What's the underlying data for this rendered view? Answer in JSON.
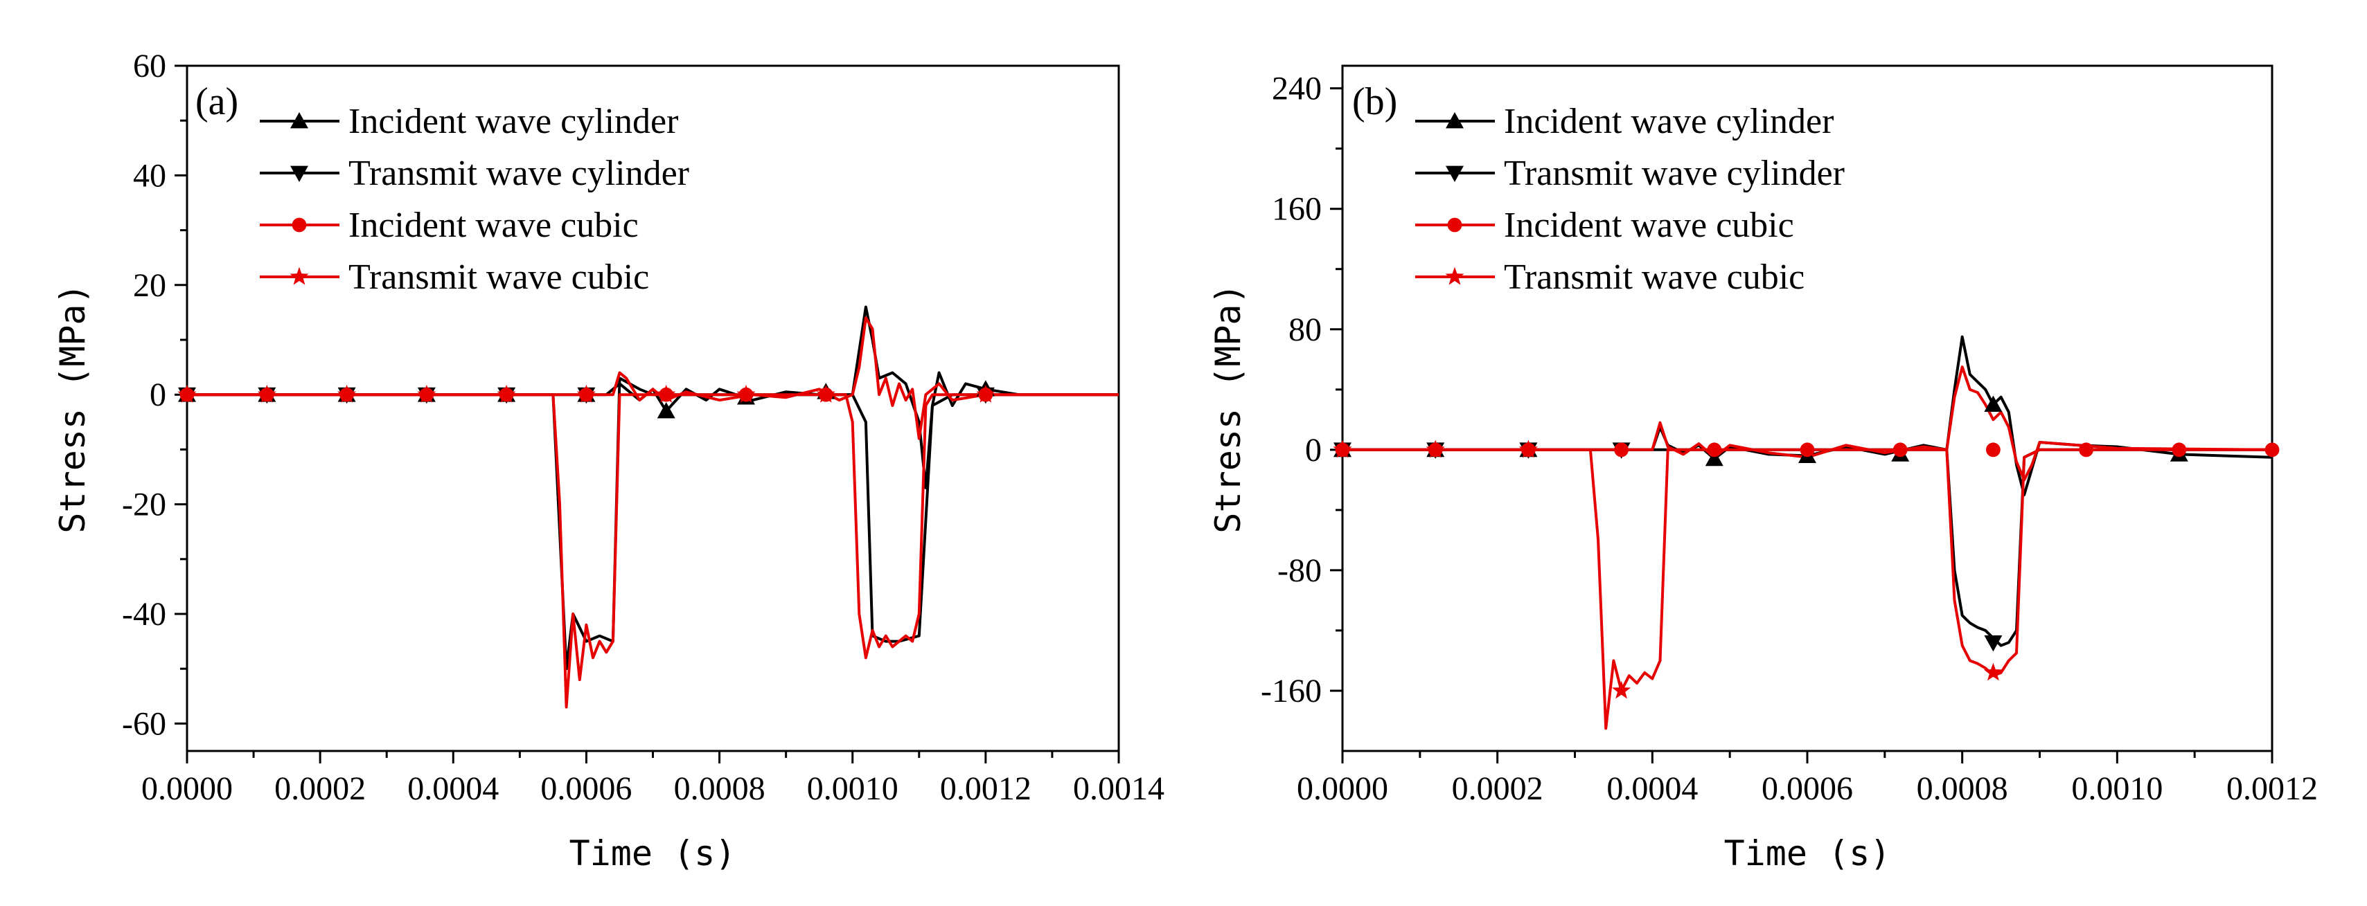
{
  "chart_data": [
    {
      "panel": "(a)",
      "type": "line",
      "xlabel": "Time (s)",
      "ylabel": "Stress (MPa)",
      "xlim": [
        0,
        0.0014
      ],
      "ylim": [
        -65,
        60
      ],
      "xticks": [
        0,
        0.0002,
        0.0004,
        0.0006,
        0.0008,
        0.001,
        0.0012,
        0.0014
      ],
      "xtick_labels": [
        "0.0000",
        "0.0002",
        "0.0004",
        "0.0006",
        "0.0008",
        "0.0010",
        "0.0012",
        "0.0014"
      ],
      "yticks": [
        -60,
        -40,
        -20,
        0,
        20,
        40,
        60
      ],
      "ytick_labels": [
        "-60",
        "-40",
        "-20",
        "0",
        "20",
        "40",
        "60"
      ],
      "legend_position": "top-left",
      "series": [
        {
          "name": "Incident wave cylinder",
          "color": "#000000",
          "marker": "triangle-up",
          "x": [
            0,
            0.0005,
            0.00063,
            0.00065,
            0.00068,
            0.0007,
            0.00072,
            0.00075,
            0.00078,
            0.0008,
            0.00085,
            0.0009,
            0.00095,
            0.001,
            0.00101,
            0.00102,
            0.00103,
            0.00104,
            0.00106,
            0.00108,
            0.0011,
            0.00111,
            0.00112,
            0.00113,
            0.00115,
            0.00117,
            0.0012,
            0.00125,
            0.0014
          ],
          "y": [
            0,
            0,
            0,
            2,
            -1,
            1,
            -3,
            1,
            -1,
            1,
            -1,
            0.5,
            0,
            0,
            8,
            16,
            10,
            3,
            4,
            2,
            -5,
            -17,
            -2,
            4,
            -2,
            2,
            1,
            0,
            0
          ],
          "marker_x": [
            0,
            0.00012,
            0.00024,
            0.00036,
            0.00048,
            0.0006,
            0.00072,
            0.00084,
            0.00096,
            0.0012
          ],
          "marker_y": [
            0,
            0,
            0,
            0,
            0,
            0,
            -3,
            -0.5,
            0.5,
            1
          ]
        },
        {
          "name": "Transmit wave cylinder",
          "color": "#000000",
          "marker": "triangle-down",
          "x": [
            0,
            0.00055,
            0.00057,
            0.00058,
            0.0006,
            0.00062,
            0.00064,
            0.00065,
            0.00068,
            0.0007,
            0.0009,
            0.001,
            0.00102,
            0.00103,
            0.00105,
            0.00107,
            0.0011,
            0.00112,
            0.00115,
            0.0014
          ],
          "y": [
            0,
            0,
            -50,
            -40,
            -45,
            -44,
            -45,
            3,
            1,
            0,
            0,
            0,
            -5,
            -44,
            -45,
            -45,
            -44,
            -2,
            0,
            0
          ],
          "marker_x": [
            0,
            0.00012,
            0.00024,
            0.00036,
            0.00048,
            0.0006,
            0.0012
          ],
          "marker_y": [
            0,
            0,
            0,
            0,
            0,
            0,
            0
          ]
        },
        {
          "name": "Incident wave cubic",
          "color": "#e60000",
          "marker": "circle",
          "x": [
            0,
            0.0006,
            0.00064,
            0.00065,
            0.00066,
            0.00068,
            0.0007,
            0.00072,
            0.00075,
            0.0008,
            0.00085,
            0.0009,
            0.00095,
            0.00098,
            0.001,
            0.00101,
            0.00102,
            0.00103,
            0.00104,
            0.00105,
            0.00106,
            0.00107,
            0.00108,
            0.00109,
            0.0011,
            0.00111,
            0.00113,
            0.00115,
            0.0012,
            0.0014
          ],
          "y": [
            0,
            0,
            0,
            4,
            3,
            -1,
            1,
            -1,
            0.5,
            -1,
            0,
            -0.5,
            1,
            -1,
            0,
            5,
            14,
            12,
            0,
            3,
            -2,
            2,
            -1,
            1,
            -8,
            0,
            2,
            -1,
            0,
            0
          ],
          "marker_x": [
            0,
            0.00012,
            0.00024,
            0.00036,
            0.00048,
            0.0006,
            0.00072,
            0.00084,
            0.00096,
            0.0012
          ],
          "marker_y": [
            0,
            0,
            0,
            0,
            0,
            0,
            0,
            0,
            0,
            0
          ]
        },
        {
          "name": "Transmit wave cubic",
          "color": "#e60000",
          "marker": "star",
          "x": [
            0,
            0.00055,
            0.00056,
            0.00057,
            0.00058,
            0.00059,
            0.0006,
            0.00061,
            0.00062,
            0.00063,
            0.00064,
            0.00065,
            0.0007,
            0.00099,
            0.001,
            0.00101,
            0.00102,
            0.00103,
            0.00104,
            0.00105,
            0.00106,
            0.00107,
            0.00108,
            0.00109,
            0.0011,
            0.00111,
            0.00112,
            0.0014
          ],
          "y": [
            0,
            0,
            -20,
            -57,
            -40,
            -52,
            -42,
            -48,
            -45,
            -47,
            -45,
            0,
            0,
            0,
            -5,
            -40,
            -48,
            -43,
            -46,
            -44,
            -46,
            -45,
            -44,
            -45,
            -40,
            -2,
            0,
            0
          ],
          "marker_x": [
            0,
            0.00012,
            0.00024,
            0.00036,
            0.00048,
            0.0006,
            0.00072,
            0.00084,
            0.00096,
            0.0012
          ],
          "marker_y": [
            0,
            0,
            0,
            0,
            0,
            0,
            0,
            0,
            0,
            0
          ]
        }
      ]
    },
    {
      "panel": "(b)",
      "type": "line",
      "xlabel": "Time (s)",
      "ylabel": "Stress (MPa)",
      "xlim": [
        0,
        0.0012
      ],
      "ylim": [
        -200,
        255
      ],
      "xticks": [
        0,
        0.0002,
        0.0004,
        0.0006,
        0.0008,
        0.001,
        0.0012
      ],
      "xtick_labels": [
        "0.0000",
        "0.0002",
        "0.0004",
        "0.0006",
        "0.0008",
        "0.0010",
        "0.0012"
      ],
      "yticks": [
        -160,
        -80,
        0,
        80,
        160,
        240
      ],
      "ytick_labels": [
        "-160",
        "-80",
        "0",
        "80",
        "160",
        "240"
      ],
      "legend_position": "top-left",
      "series": [
        {
          "name": "Incident wave cylinder",
          "color": "#000000",
          "marker": "triangle-up",
          "x": [
            0,
            0.0004,
            0.00041,
            0.00042,
            0.00044,
            0.00046,
            0.00048,
            0.0005,
            0.00055,
            0.0006,
            0.00065,
            0.0007,
            0.00075,
            0.00078,
            0.00079,
            0.0008,
            0.00081,
            0.00082,
            0.00083,
            0.00084,
            0.00085,
            0.00086,
            0.00087,
            0.00088,
            0.0009,
            0.00095,
            0.001,
            0.00108,
            0.0012
          ],
          "y": [
            0,
            0,
            15,
            3,
            -2,
            3,
            -6,
            2,
            -3,
            -4,
            2,
            -3,
            3,
            0,
            40,
            75,
            50,
            45,
            40,
            30,
            35,
            25,
            -10,
            -30,
            5,
            3,
            2,
            -3,
            -5
          ],
          "marker_x": [
            0,
            0.00012,
            0.00024,
            0.00048,
            0.0006,
            0.00072,
            0.00084,
            0.00108
          ],
          "marker_y": [
            0,
            0,
            0,
            -6,
            -4,
            -3,
            30,
            -3
          ]
        },
        {
          "name": "Transmit wave cylinder",
          "color": "#000000",
          "marker": "triangle-down",
          "x": [
            0,
            0.00078,
            0.00079,
            0.0008,
            0.00081,
            0.00082,
            0.00083,
            0.00084,
            0.00085,
            0.00086,
            0.00087,
            0.00088,
            0.0009,
            0.0012
          ],
          "y": [
            0,
            0,
            -80,
            -110,
            -115,
            -118,
            -120,
            -125,
            -130,
            -128,
            -120,
            -5,
            0,
            0
          ],
          "marker_x": [
            0,
            0.00012,
            0.00024,
            0.00036,
            0.00084
          ],
          "marker_y": [
            0,
            0,
            0,
            0,
            -128
          ]
        },
        {
          "name": "Incident wave cubic",
          "color": "#e60000",
          "marker": "circle",
          "x": [
            0,
            0.0004,
            0.00041,
            0.00042,
            0.00044,
            0.00046,
            0.00048,
            0.0005,
            0.00055,
            0.0006,
            0.00065,
            0.0007,
            0.00075,
            0.00078,
            0.00079,
            0.0008,
            0.00081,
            0.00082,
            0.00083,
            0.00084,
            0.00085,
            0.00086,
            0.00087,
            0.00088,
            0.00089,
            0.0009,
            0.00095,
            0.001,
            0.0012
          ],
          "y": [
            0,
            0,
            18,
            2,
            -3,
            4,
            -5,
            3,
            -2,
            -5,
            3,
            -2,
            2,
            0,
            35,
            55,
            40,
            38,
            30,
            20,
            25,
            15,
            -8,
            -20,
            -10,
            5,
            3,
            1,
            0
          ],
          "marker_x": [
            0,
            0.00012,
            0.00024,
            0.00036,
            0.00048,
            0.0006,
            0.00072,
            0.00084,
            0.00096,
            0.00108,
            0.0012
          ],
          "marker_y": [
            0,
            0,
            0,
            0,
            0,
            0,
            0,
            0,
            0,
            0,
            0
          ]
        },
        {
          "name": "Transmit wave cubic",
          "color": "#e60000",
          "marker": "star",
          "x": [
            0,
            0.00032,
            0.00033,
            0.00034,
            0.00035,
            0.00036,
            0.00037,
            0.00038,
            0.00039,
            0.0004,
            0.00041,
            0.00042,
            0.0007,
            0.00078,
            0.00079,
            0.0008,
            0.00081,
            0.00082,
            0.00083,
            0.00084,
            0.00085,
            0.00086,
            0.00087,
            0.00088,
            0.0009,
            0.0012
          ],
          "y": [
            0,
            0,
            -60,
            -185,
            -140,
            -160,
            -150,
            -155,
            -148,
            -152,
            -140,
            0,
            0,
            0,
            -100,
            -130,
            -140,
            -142,
            -145,
            -150,
            -148,
            -140,
            -135,
            -5,
            0,
            0
          ],
          "marker_x": [
            0,
            0.00012,
            0.00024,
            0.00036,
            0.00084
          ],
          "marker_y": [
            0,
            0,
            0,
            -160,
            -148
          ]
        }
      ]
    }
  ]
}
